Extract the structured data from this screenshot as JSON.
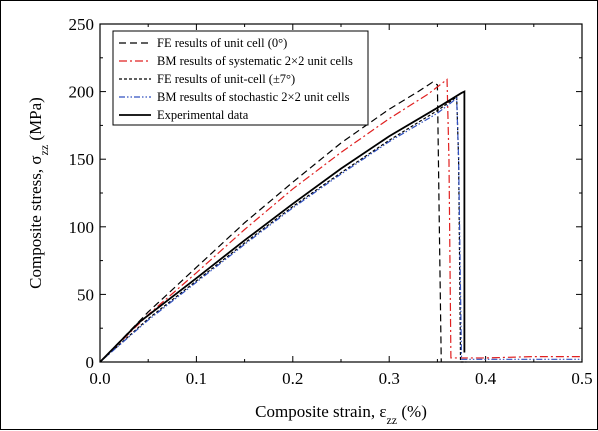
{
  "chart_data": {
    "type": "line",
    "xlabel_main": "Composite strain, ε",
    "xlabel_sub": "zz",
    "xlabel_unit": " (%)",
    "ylabel_main": "Composite stress, σ",
    "ylabel_sub": "zz",
    "ylabel_unit": " (MPa)",
    "xlim": [
      0.0,
      0.5
    ],
    "ylim": [
      0,
      250
    ],
    "xticks": [
      0.0,
      0.1,
      0.2,
      0.3,
      0.4,
      0.5
    ],
    "xtick_labels": [
      "0.0",
      "0.1",
      "0.2",
      "0.3",
      "0.4",
      "0.5"
    ],
    "yticks": [
      0,
      50,
      100,
      150,
      200,
      250
    ],
    "ytick_labels": [
      "0",
      "50",
      "100",
      "150",
      "200",
      "250"
    ],
    "legend_position": "top-left",
    "series": [
      {
        "name": "FE results of unit cell (0°)",
        "color": "#000000",
        "dash": "dashed",
        "x": [
          0.0,
          0.05,
          0.1,
          0.15,
          0.2,
          0.25,
          0.3,
          0.33,
          0.345,
          0.35,
          0.352,
          0.354
        ],
        "y": [
          0,
          37,
          70,
          103,
          133,
          162,
          187,
          200,
          207,
          205,
          100,
          0
        ]
      },
      {
        "name": "BM results of systematic 2×2 unit cells",
        "color": "#e02020",
        "dash": "dashdot",
        "x": [
          0.0,
          0.05,
          0.1,
          0.15,
          0.2,
          0.25,
          0.3,
          0.34,
          0.36,
          0.362,
          0.364,
          0.4,
          0.45,
          0.5
        ],
        "y": [
          0,
          35,
          66,
          98,
          128,
          155,
          180,
          198,
          209,
          150,
          3,
          3,
          4,
          4
        ]
      },
      {
        "name": "FE results of unit-cell (±7°)",
        "color": "#000000",
        "dash": "shortdash",
        "x": [
          0.0,
          0.05,
          0.1,
          0.15,
          0.2,
          0.25,
          0.3,
          0.35,
          0.37,
          0.372,
          0.374,
          0.38
        ],
        "y": [
          0,
          32,
          60,
          88,
          115,
          140,
          164,
          186,
          196,
          150,
          0,
          0
        ]
      },
      {
        "name": "BM results of stochastic 2×2 unit cells",
        "color": "#3050c0",
        "dash": "dashdotdot",
        "x": [
          0.0,
          0.05,
          0.1,
          0.15,
          0.2,
          0.25,
          0.3,
          0.35,
          0.37,
          0.372,
          0.375,
          0.4,
          0.45,
          0.5
        ],
        "y": [
          0,
          31,
          59,
          87,
          114,
          139,
          163,
          184,
          195,
          150,
          2,
          2,
          2,
          2
        ]
      },
      {
        "name": "Experimental data",
        "color": "#000000",
        "dash": "solid",
        "x": [
          0.0,
          0.04,
          0.1,
          0.15,
          0.2,
          0.25,
          0.3,
          0.35,
          0.375,
          0.378,
          0.378
        ],
        "y": [
          0,
          29,
          62,
          90,
          117,
          143,
          167,
          188,
          199,
          200,
          7
        ]
      }
    ]
  }
}
